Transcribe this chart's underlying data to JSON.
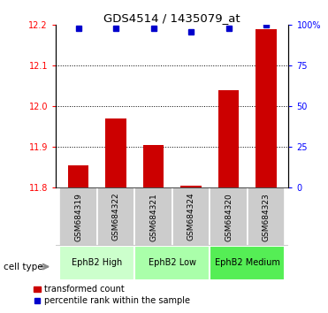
{
  "title": "GDS4514 / 1435079_at",
  "samples": [
    "GSM684319",
    "GSM684322",
    "GSM684321",
    "GSM684324",
    "GSM684320",
    "GSM684323"
  ],
  "red_values": [
    11.855,
    11.97,
    11.905,
    11.805,
    12.04,
    12.19
  ],
  "blue_values": [
    98,
    98,
    98,
    96,
    98,
    100
  ],
  "ylim_left": [
    11.8,
    12.2
  ],
  "ylim_right": [
    0,
    100
  ],
  "yticks_left": [
    11.8,
    11.9,
    12.0,
    12.1,
    12.2
  ],
  "yticks_right": [
    0,
    25,
    50,
    75,
    100
  ],
  "ytick_labels_right": [
    "0",
    "25",
    "50",
    "75",
    "100%"
  ],
  "cell_types": [
    {
      "label": "EphB2 High",
      "start": 0,
      "end": 2,
      "color": "#ccffcc"
    },
    {
      "label": "EphB2 Low",
      "start": 2,
      "end": 4,
      "color": "#aaffaa"
    },
    {
      "label": "EphB2 Medium",
      "start": 4,
      "end": 6,
      "color": "#55ee55"
    }
  ],
  "bar_color": "#cc0000",
  "dot_color": "#0000cc",
  "bar_bottom": 11.8,
  "sample_box_color": "#cccccc",
  "cell_type_label": "cell type",
  "legend_bar_label": "transformed count",
  "legend_dot_label": "percentile rank within the sample"
}
